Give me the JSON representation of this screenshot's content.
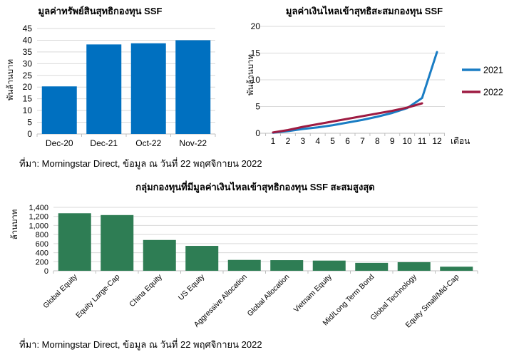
{
  "page": {
    "background": "#ffffff"
  },
  "colors": {
    "grid": "#d9d9d9",
    "axis": "#bfbfbf",
    "text": "#000000",
    "bar_blue": "#0070c0",
    "bar_green": "#2e7d54",
    "line_2021": "#1a7dc4",
    "line_2022": "#9e1b42"
  },
  "notes": {
    "top": "ที่มา: Morningstar Direct, ข้อมูล ณ วันที่ 22 พฤศจิกายน 2022",
    "bottom": "ที่มา: Morningstar Direct, ข้อมูล ณ วันที่ 22 พฤศจิกายน 2022"
  },
  "chart_data": [
    {
      "type": "bar",
      "title": "มูลค่าทรัพย์สินสุทธิกองทุน SSF",
      "ylabel": "พันล้านบาท",
      "categories": [
        "Dec-20",
        "Dec-21",
        "Oct-22",
        "Nov-22"
      ],
      "values": [
        20.3,
        38.2,
        38.7,
        40.0
      ],
      "ylim": [
        0,
        45
      ],
      "ytick_step": 5,
      "bar_color": "#0070c0",
      "grid": true
    },
    {
      "type": "line",
      "title": "มูลค่าเงินไหลเข้าสุทธิสะสมกองทุน SSF",
      "ylabel": "พันล้านบาท",
      "xlabel": "เดือน",
      "x": [
        1,
        2,
        3,
        4,
        5,
        6,
        7,
        8,
        9,
        10,
        11,
        12
      ],
      "ylim": [
        0,
        20
      ],
      "ytick_step": 5,
      "grid": true,
      "legend_position": "right",
      "series": [
        {
          "name": "2021",
          "color": "#1a7dc4",
          "values": [
            0.1,
            0.4,
            0.8,
            1.1,
            1.5,
            2.0,
            2.5,
            3.1,
            3.8,
            4.7,
            6.6,
            15.2
          ]
        },
        {
          "name": "2022",
          "color": "#9e1b42",
          "values": [
            0.15,
            0.6,
            1.2,
            1.7,
            2.2,
            2.7,
            3.2,
            3.7,
            4.2,
            4.8,
            5.6
          ]
        }
      ]
    },
    {
      "type": "bar",
      "title": "กลุ่มกองทุนที่มีมูลค่าเงินไหลเข้าสุทธิกองทุน SSF สะสมสูงสุด",
      "ylabel": "ล้านบาท",
      "categories": [
        "Global Equity",
        "Equity Large-Cap",
        "China Equity",
        "US Equity",
        "Aggressive Allocation",
        "Global Allocation",
        "Vietnam Equity",
        "Mid/Long Term Bond",
        "Global Technology",
        "Equity Small/Mid-Cap"
      ],
      "values": [
        1270,
        1230,
        680,
        550,
        240,
        235,
        225,
        175,
        190,
        90
      ],
      "ylim": [
        0,
        1400
      ],
      "ytick_step": 200,
      "ytick_format": "comma",
      "bar_color": "#2e7d54",
      "grid": true,
      "x_label_rotation": -45
    }
  ]
}
